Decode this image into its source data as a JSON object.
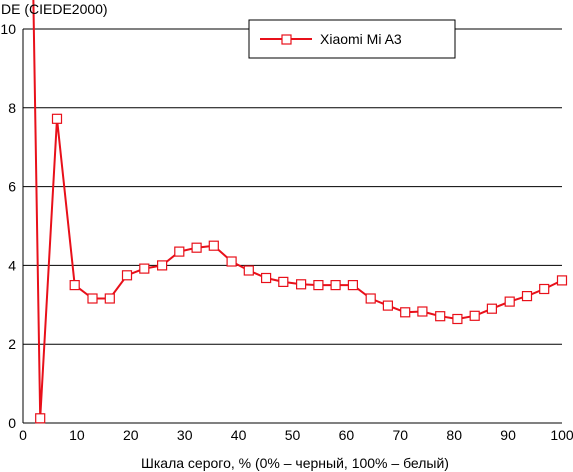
{
  "chart_data": {
    "type": "line",
    "title": "",
    "ylabel": "DE (CIEDE2000)",
    "xlabel": "Шкала серого, % (0% – черный, 100% – белый)",
    "xlim": [
      0,
      100
    ],
    "ylim": [
      0,
      10
    ],
    "xticks": [
      0,
      10,
      20,
      30,
      40,
      50,
      60,
      70,
      80,
      90,
      100
    ],
    "yticks": [
      0,
      2,
      4,
      6,
      8,
      10
    ],
    "grid": "horizontal",
    "legend_position": "top-center",
    "colors": {
      "series": "#e8101a",
      "grid": "#000000",
      "marker_fill": "#ffffff"
    },
    "series": [
      {
        "name": "Xiaomi Mi A3",
        "points": [
          [
            1.9,
            11.0
          ],
          [
            3.2,
            0.12
          ],
          [
            6.3,
            7.72
          ],
          [
            9.6,
            3.5
          ],
          [
            12.9,
            3.16
          ],
          [
            16.1,
            3.16
          ],
          [
            19.3,
            3.75
          ],
          [
            22.5,
            3.92
          ],
          [
            25.8,
            4.0
          ],
          [
            29.0,
            4.35
          ],
          [
            32.2,
            4.45
          ],
          [
            35.4,
            4.5
          ],
          [
            38.7,
            4.1
          ],
          [
            41.9,
            3.87
          ],
          [
            45.1,
            3.68
          ],
          [
            48.3,
            3.58
          ],
          [
            51.6,
            3.52
          ],
          [
            54.8,
            3.5
          ],
          [
            58.0,
            3.5
          ],
          [
            61.2,
            3.5
          ],
          [
            64.5,
            3.16
          ],
          [
            67.7,
            2.98
          ],
          [
            70.9,
            2.81
          ],
          [
            74.1,
            2.83
          ],
          [
            77.4,
            2.71
          ],
          [
            80.6,
            2.64
          ],
          [
            83.8,
            2.72
          ],
          [
            87.0,
            2.9
          ],
          [
            90.3,
            3.08
          ],
          [
            93.5,
            3.22
          ],
          [
            96.7,
            3.4
          ],
          [
            100.0,
            3.62
          ]
        ],
        "marker_start_index": 1
      }
    ]
  }
}
